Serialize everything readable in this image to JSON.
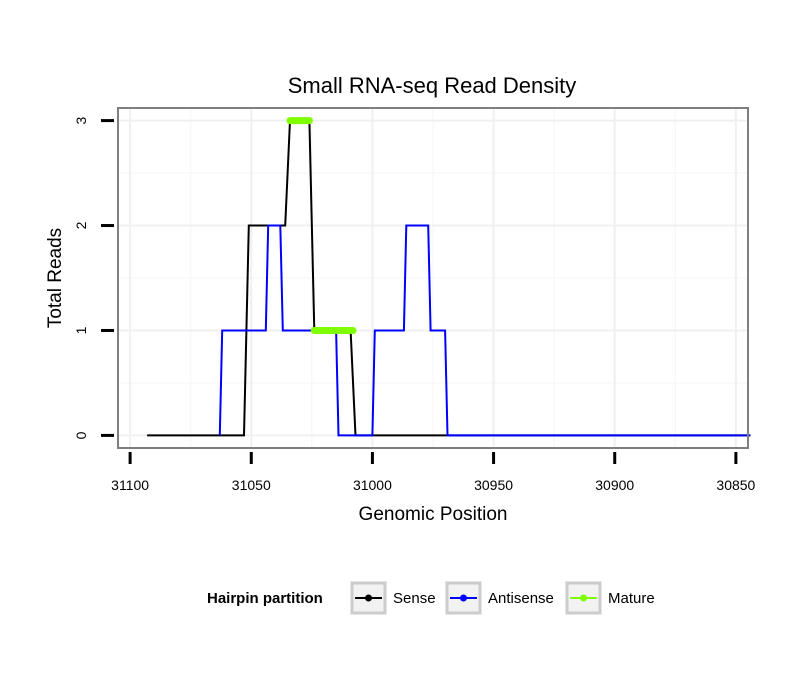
{
  "chart_data": {
    "type": "line",
    "title": "Small RNA-seq Read Density",
    "xlabel": "Genomic Position",
    "ylabel": "Total Reads",
    "x_reversed": true,
    "xlim": [
      31105,
      30845
    ],
    "ylim": [
      -0.12,
      3.12
    ],
    "x_ticks": [
      31100,
      31050,
      31000,
      30950,
      30900,
      30850
    ],
    "x_tick_labels": [
      "31100",
      "31050",
      "31000",
      "30950",
      "30900",
      "30850"
    ],
    "y_ticks": [
      0,
      1,
      2,
      3
    ],
    "y_tick_labels": [
      "0",
      "1",
      "2",
      "3"
    ],
    "grid": true,
    "legend": {
      "title": "Hairpin partition",
      "placement": "bottom",
      "entries": [
        "Sense",
        "Antisense",
        "Mature"
      ]
    },
    "series": [
      {
        "name": "Sense",
        "color": "#000000",
        "points": [
          [
            31093,
            0
          ],
          [
            31053,
            0
          ],
          [
            31051,
            2
          ],
          [
            31036,
            2
          ],
          [
            31034,
            3
          ],
          [
            31026,
            3
          ],
          [
            31024,
            1
          ],
          [
            31009,
            1
          ],
          [
            31007,
            0
          ],
          [
            30844,
            0
          ]
        ]
      },
      {
        "name": "Antisense",
        "color": "#0000ff",
        "points": [
          [
            31063,
            0
          ],
          [
            31062,
            1
          ],
          [
            31044,
            1
          ],
          [
            31043,
            2
          ],
          [
            31038,
            2
          ],
          [
            31037,
            1
          ],
          [
            31015,
            1
          ],
          [
            31014,
            0
          ],
          [
            31000,
            0
          ],
          [
            30999,
            1
          ],
          [
            30987,
            1
          ],
          [
            30986,
            2
          ],
          [
            30977,
            2
          ],
          [
            30976,
            1
          ],
          [
            30970,
            1
          ],
          [
            30969,
            0
          ],
          [
            30844,
            0
          ]
        ]
      },
      {
        "name": "Mature",
        "color": "#7fff00",
        "segments": [
          [
            [
              31034,
              3
            ],
            [
              31026,
              3
            ]
          ],
          [
            [
              31024,
              1
            ],
            [
              31008,
              1
            ]
          ]
        ]
      }
    ]
  }
}
